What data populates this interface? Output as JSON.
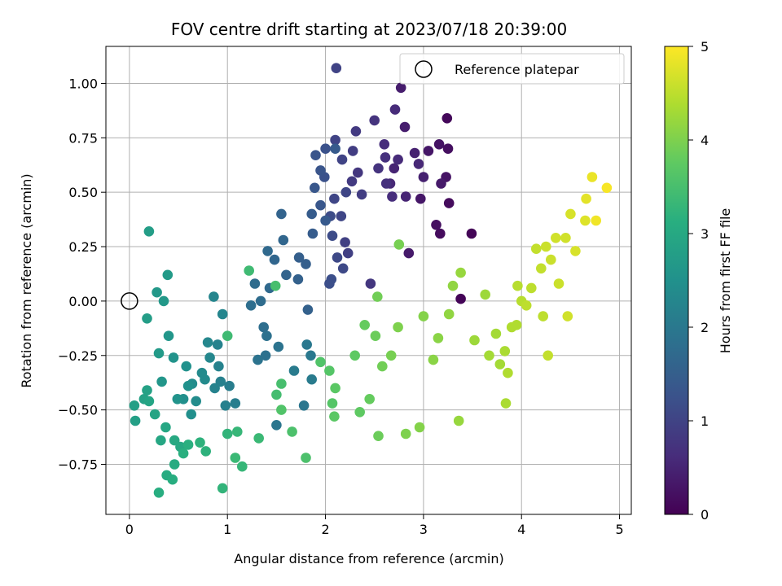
{
  "chart_data": {
    "type": "scatter",
    "title": "FOV centre drift starting at 2023/07/18 20:39:00",
    "xlabel": "Angular distance from reference (arcmin)",
    "ylabel": "Rotation from reference (arcmin)",
    "xlim": [
      -0.24,
      5.12
    ],
    "ylim": [
      -0.98,
      1.17
    ],
    "xticks": [
      0,
      1,
      2,
      3,
      4,
      5
    ],
    "xtick_labels": [
      "0",
      "1",
      "2",
      "3",
      "4",
      "5"
    ],
    "yticks": [
      -0.75,
      -0.5,
      -0.25,
      0.0,
      0.25,
      0.5,
      0.75,
      1.0
    ],
    "ytick_labels": [
      "−0.75",
      "−0.50",
      "−0.25",
      "0.00",
      "0.25",
      "0.50",
      "0.75",
      "1.00"
    ],
    "grid": true,
    "legend": {
      "position": "top-right",
      "entries": [
        "Reference platepar"
      ]
    },
    "reference_point": {
      "x": 0.0,
      "y": 0.0,
      "label": "Reference platepar"
    },
    "colorbar": {
      "label": "Hours from first FF file",
      "colormap": "viridis",
      "range": [
        0,
        5
      ],
      "ticks": [
        0,
        1,
        2,
        3,
        4,
        5
      ],
      "tick_labels": [
        "0",
        "1",
        "2",
        "3",
        "4",
        "5"
      ]
    },
    "points": [
      [
        3.49,
        0.31,
        0.05
      ],
      [
        3.38,
        0.01,
        0.05
      ],
      [
        3.24,
        0.84,
        0.1
      ],
      [
        3.17,
        0.31,
        0.15
      ],
      [
        3.26,
        0.45,
        0.15
      ],
      [
        3.25,
        0.7,
        0.2
      ],
      [
        3.13,
        0.35,
        0.2
      ],
      [
        3.16,
        0.72,
        0.25
      ],
      [
        3.23,
        0.57,
        0.25
      ],
      [
        2.97,
        0.47,
        0.3
      ],
      [
        3.05,
        0.69,
        0.3
      ],
      [
        2.85,
        0.22,
        0.35
      ],
      [
        3.18,
        0.54,
        0.35
      ],
      [
        2.81,
        0.8,
        0.4
      ],
      [
        2.77,
        0.98,
        0.4
      ],
      [
        2.91,
        0.68,
        0.45
      ],
      [
        3.0,
        0.57,
        0.45
      ],
      [
        2.7,
        0.61,
        0.5
      ],
      [
        2.82,
        0.48,
        0.5
      ],
      [
        2.95,
        0.63,
        0.55
      ],
      [
        2.66,
        0.54,
        0.55
      ],
      [
        2.71,
        0.88,
        0.6
      ],
      [
        2.74,
        0.65,
        0.6
      ],
      [
        2.6,
        0.72,
        0.65
      ],
      [
        2.68,
        0.48,
        0.65
      ],
      [
        2.61,
        0.66,
        0.7
      ],
      [
        2.62,
        0.54,
        0.7
      ],
      [
        2.5,
        0.83,
        0.75
      ],
      [
        2.54,
        0.61,
        0.75
      ],
      [
        2.46,
        0.08,
        0.8
      ],
      [
        2.33,
        0.59,
        0.8
      ],
      [
        2.31,
        0.78,
        0.85
      ],
      [
        2.27,
        0.55,
        0.85
      ],
      [
        2.28,
        0.69,
        0.9
      ],
      [
        2.37,
        0.49,
        0.9
      ],
      [
        2.23,
        0.22,
        0.95
      ],
      [
        2.2,
        0.27,
        0.95
      ],
      [
        2.11,
        1.07,
        1.0
      ],
      [
        2.1,
        0.74,
        1.0
      ],
      [
        2.17,
        0.65,
        1.0
      ],
      [
        2.09,
        0.47,
        1.05
      ],
      [
        2.21,
        0.5,
        1.05
      ],
      [
        2.16,
        0.39,
        1.05
      ],
      [
        2.12,
        0.2,
        1.1
      ],
      [
        2.18,
        0.15,
        1.1
      ],
      [
        2.05,
        0.39,
        1.15
      ],
      [
        2.07,
        0.3,
        1.15
      ],
      [
        2.06,
        0.1,
        1.2
      ],
      [
        2.04,
        0.08,
        1.2
      ],
      [
        2.0,
        0.7,
        1.25
      ],
      [
        1.99,
        0.57,
        1.25
      ],
      [
        1.95,
        0.6,
        1.3
      ],
      [
        1.9,
        0.67,
        1.3
      ],
      [
        1.95,
        0.44,
        1.35
      ],
      [
        1.89,
        0.52,
        1.35
      ],
      [
        2.1,
        0.7,
        1.4
      ],
      [
        2.0,
        0.37,
        1.4
      ],
      [
        1.86,
        0.4,
        1.45
      ],
      [
        1.87,
        0.31,
        1.45
      ],
      [
        1.8,
        0.17,
        1.5
      ],
      [
        1.73,
        0.2,
        1.5
      ],
      [
        1.72,
        0.1,
        1.55
      ],
      [
        1.82,
        -0.04,
        1.55
      ],
      [
        1.6,
        0.12,
        1.6
      ],
      [
        1.55,
        0.4,
        1.6
      ],
      [
        1.57,
        0.28,
        1.65
      ],
      [
        1.48,
        0.19,
        1.65
      ],
      [
        1.41,
        0.23,
        1.7
      ],
      [
        1.43,
        0.06,
        1.7
      ],
      [
        1.34,
        0.0,
        1.75
      ],
      [
        1.28,
        0.08,
        1.75
      ],
      [
        1.24,
        -0.02,
        1.8
      ],
      [
        1.37,
        -0.12,
        1.8
      ],
      [
        1.4,
        -0.16,
        1.85
      ],
      [
        1.39,
        -0.25,
        1.85
      ],
      [
        1.31,
        -0.27,
        1.9
      ],
      [
        1.52,
        -0.21,
        1.9
      ],
      [
        1.5,
        -0.57,
        1.95
      ],
      [
        1.78,
        -0.48,
        1.95
      ],
      [
        1.81,
        -0.2,
        2.0
      ],
      [
        1.85,
        -0.25,
        2.0
      ],
      [
        1.68,
        -0.32,
        2.05
      ],
      [
        1.86,
        -0.36,
        2.05
      ],
      [
        1.08,
        -0.47,
        2.1
      ],
      [
        1.02,
        -0.39,
        2.1
      ],
      [
        0.98,
        -0.48,
        2.15
      ],
      [
        0.93,
        -0.37,
        2.15
      ],
      [
        0.87,
        -0.4,
        2.2
      ],
      [
        0.91,
        -0.3,
        2.2
      ],
      [
        0.9,
        -0.2,
        2.2
      ],
      [
        0.86,
        0.02,
        2.25
      ],
      [
        0.95,
        -0.06,
        2.25
      ],
      [
        0.8,
        -0.19,
        2.3
      ],
      [
        0.82,
        -0.26,
        2.3
      ],
      [
        0.74,
        -0.33,
        2.35
      ],
      [
        0.77,
        -0.36,
        2.35
      ],
      [
        0.68,
        -0.46,
        2.4
      ],
      [
        0.64,
        -0.38,
        2.4
      ],
      [
        0.63,
        -0.52,
        2.45
      ],
      [
        0.55,
        -0.45,
        2.45
      ],
      [
        0.6,
        -0.39,
        2.5
      ],
      [
        0.58,
        -0.3,
        2.5
      ],
      [
        0.49,
        -0.45,
        2.55
      ],
      [
        0.45,
        -0.26,
        2.55
      ],
      [
        0.4,
        -0.16,
        2.6
      ],
      [
        0.33,
        -0.37,
        2.6
      ],
      [
        0.35,
        0.0,
        2.65
      ],
      [
        0.28,
        0.04,
        2.65
      ],
      [
        0.39,
        0.12,
        2.7
      ],
      [
        0.3,
        -0.24,
        2.7
      ],
      [
        0.2,
        0.32,
        2.75
      ],
      [
        0.18,
        -0.08,
        2.75
      ],
      [
        0.05,
        -0.48,
        2.8
      ],
      [
        0.06,
        -0.55,
        2.8
      ],
      [
        0.15,
        -0.45,
        2.85
      ],
      [
        0.18,
        -0.41,
        2.85
      ],
      [
        0.2,
        -0.46,
        2.9
      ],
      [
        0.26,
        -0.52,
        2.9
      ],
      [
        0.32,
        -0.64,
        2.95
      ],
      [
        0.37,
        -0.58,
        2.95
      ],
      [
        0.46,
        -0.64,
        3.0
      ],
      [
        0.52,
        -0.67,
        3.0
      ],
      [
        0.46,
        -0.75,
        3.05
      ],
      [
        0.38,
        -0.8,
        3.05
      ],
      [
        0.3,
        -0.88,
        3.1
      ],
      [
        0.44,
        -0.82,
        3.1
      ],
      [
        0.55,
        -0.7,
        3.15
      ],
      [
        0.6,
        -0.66,
        3.15
      ],
      [
        0.72,
        -0.65,
        3.2
      ],
      [
        0.78,
        -0.69,
        3.2
      ],
      [
        0.95,
        -0.86,
        3.25
      ],
      [
        1.0,
        -0.61,
        3.25
      ],
      [
        1.1,
        -0.6,
        3.3
      ],
      [
        1.15,
        -0.76,
        3.3
      ],
      [
        1.08,
        -0.72,
        3.35
      ],
      [
        1.32,
        -0.63,
        3.35
      ],
      [
        1.22,
        0.14,
        3.4
      ],
      [
        1.0,
        -0.16,
        3.4
      ],
      [
        1.5,
        -0.43,
        3.45
      ],
      [
        1.55,
        -0.38,
        3.5
      ],
      [
        1.49,
        0.07,
        3.5
      ],
      [
        1.8,
        -0.72,
        3.55
      ],
      [
        1.66,
        -0.6,
        3.55
      ],
      [
        1.55,
        -0.5,
        3.6
      ],
      [
        1.95,
        -0.28,
        3.6
      ],
      [
        2.04,
        -0.32,
        3.65
      ],
      [
        2.07,
        -0.47,
        3.65
      ],
      [
        2.1,
        -0.4,
        3.7
      ],
      [
        2.09,
        -0.53,
        3.7
      ],
      [
        2.3,
        -0.25,
        3.75
      ],
      [
        2.35,
        -0.51,
        3.75
      ],
      [
        2.4,
        -0.11,
        3.8
      ],
      [
        2.45,
        -0.45,
        3.8
      ],
      [
        2.51,
        -0.16,
        3.85
      ],
      [
        2.54,
        -0.62,
        3.85
      ],
      [
        2.53,
        0.02,
        3.9
      ],
      [
        2.58,
        -0.3,
        3.9
      ],
      [
        2.67,
        -0.25,
        3.95
      ],
      [
        2.75,
        0.26,
        3.95
      ],
      [
        2.74,
        -0.12,
        4.0
      ],
      [
        2.82,
        -0.61,
        4.0
      ],
      [
        2.96,
        -0.58,
        4.05
      ],
      [
        3.0,
        -0.07,
        4.05
      ],
      [
        3.1,
        -0.27,
        4.1
      ],
      [
        3.15,
        -0.17,
        4.1
      ],
      [
        3.26,
        -0.06,
        4.15
      ],
      [
        3.3,
        0.07,
        4.15
      ],
      [
        3.36,
        -0.55,
        4.2
      ],
      [
        3.38,
        0.13,
        4.2
      ],
      [
        3.52,
        -0.18,
        4.25
      ],
      [
        3.63,
        0.03,
        4.25
      ],
      [
        3.67,
        -0.25,
        4.3
      ],
      [
        3.74,
        -0.15,
        4.3
      ],
      [
        3.84,
        -0.47,
        4.35
      ],
      [
        3.83,
        -0.23,
        4.35
      ],
      [
        3.86,
        -0.33,
        4.4
      ],
      [
        3.9,
        -0.12,
        4.4
      ],
      [
        3.96,
        0.07,
        4.45
      ],
      [
        4.0,
        0.0,
        4.45
      ],
      [
        4.05,
        -0.02,
        4.5
      ],
      [
        4.1,
        0.06,
        4.5
      ],
      [
        4.15,
        0.24,
        4.55
      ],
      [
        4.2,
        0.15,
        4.55
      ],
      [
        4.25,
        0.25,
        4.6
      ],
      [
        4.3,
        0.19,
        4.6
      ],
      [
        4.35,
        0.29,
        4.65
      ],
      [
        4.45,
        0.29,
        4.65
      ],
      [
        4.5,
        0.4,
        4.7
      ],
      [
        4.55,
        0.23,
        4.7
      ],
      [
        4.65,
        0.37,
        4.75
      ],
      [
        4.66,
        0.47,
        4.8
      ],
      [
        4.72,
        0.57,
        4.85
      ],
      [
        4.76,
        0.37,
        4.9
      ],
      [
        4.87,
        0.52,
        4.95
      ],
      [
        4.38,
        0.08,
        4.6
      ],
      [
        4.27,
        -0.25,
        4.55
      ],
      [
        4.47,
        -0.07,
        4.65
      ],
      [
        4.22,
        -0.07,
        4.5
      ],
      [
        3.95,
        -0.11,
        4.4
      ],
      [
        3.78,
        -0.29,
        4.3
      ]
    ]
  }
}
